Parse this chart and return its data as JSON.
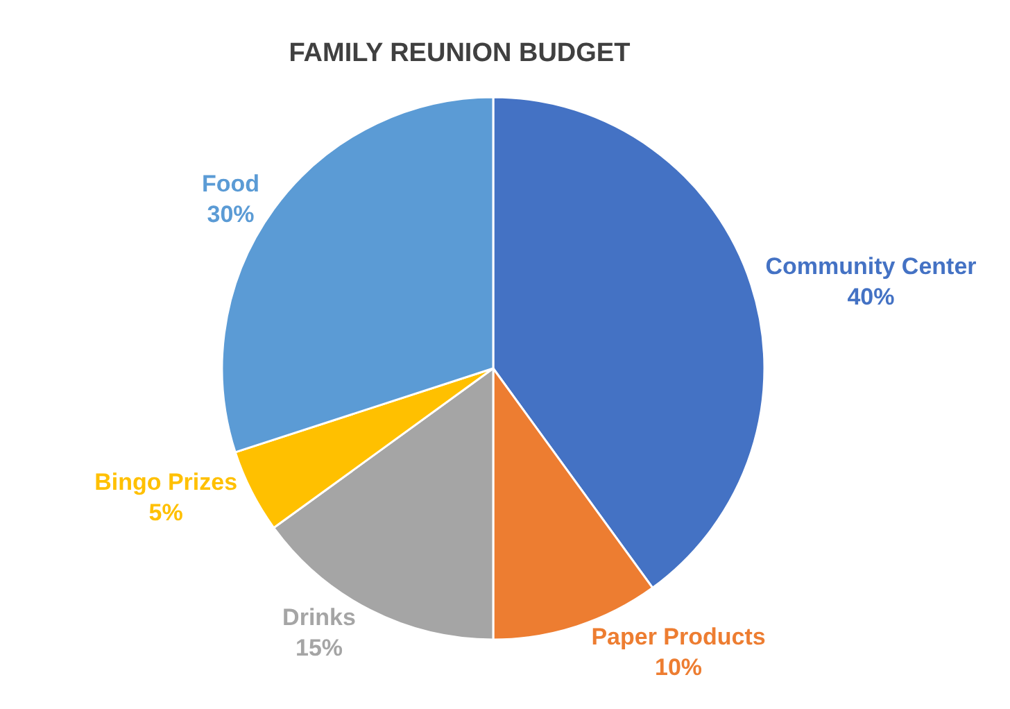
{
  "chart_data": {
    "type": "pie",
    "title": "FAMILY REUNION BUDGET",
    "categories": [
      "Community Center",
      "Paper Products",
      "Drinks",
      "Bingo Prizes",
      "Food"
    ],
    "values": [
      40,
      10,
      15,
      5,
      30
    ],
    "value_labels": [
      "40%",
      "10%",
      "15%",
      "5%",
      "30%"
    ],
    "colors": [
      "#4472c4",
      "#ed7d31",
      "#a5a5a5",
      "#ffc000",
      "#5b9bd5"
    ],
    "legend": false
  }
}
